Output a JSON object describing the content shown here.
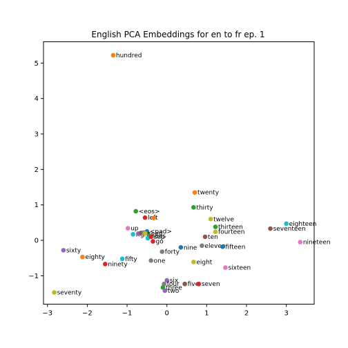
{
  "chart_data": {
    "type": "scatter",
    "title": "English PCA Embeddings for en to fr ep. 1",
    "xlabel": "",
    "ylabel": "",
    "xlim": [
      -3.1,
      3.7
    ],
    "ylim": [
      -1.8,
      5.6
    ],
    "xticks": [
      -3,
      -2,
      -1,
      0,
      1,
      2,
      3
    ],
    "yticks": [
      -1,
      0,
      1,
      2,
      3,
      4,
      5
    ],
    "grid": false,
    "points": [
      {
        "label": "hundred",
        "x": -1.35,
        "y": 5.22,
        "color": "#ff7f0e"
      },
      {
        "label": "twenty",
        "x": 0.7,
        "y": 1.35,
        "color": "#ff7f0e"
      },
      {
        "label": "thirty",
        "x": 0.67,
        "y": 0.93,
        "color": "#2ca02c"
      },
      {
        "label": "<eos>",
        "x": -0.78,
        "y": 0.82,
        "color": "#2ca02c"
      },
      {
        "label": "left",
        "x": -0.55,
        "y": 0.64,
        "color": "#d62728"
      },
      {
        "label": "",
        "x": -0.33,
        "y": 0.63,
        "color": "#ff7f0e"
      },
      {
        "label": "twelve",
        "x": 1.1,
        "y": 0.6,
        "color": "#bcbd22"
      },
      {
        "label": "thirteen",
        "x": 1.22,
        "y": 0.38,
        "color": "#2ca02c"
      },
      {
        "label": "fourteen",
        "x": 1.22,
        "y": 0.24,
        "color": "#bcbd22"
      },
      {
        "label": "eighteen",
        "x": 3.0,
        "y": 0.47,
        "color": "#17becf"
      },
      {
        "label": "seventeen",
        "x": 2.6,
        "y": 0.33,
        "color": "#8c564b"
      },
      {
        "label": "up",
        "x": -0.98,
        "y": 0.34,
        "color": "#e377c2"
      },
      {
        "label": "ten",
        "x": 0.96,
        "y": 0.1,
        "color": "#8c564b"
      },
      {
        "label": "nineteen",
        "x": 3.35,
        "y": -0.05,
        "color": "#e377c2"
      },
      {
        "label": "eleven",
        "x": 0.88,
        "y": -0.15,
        "color": "#7f7f7f"
      },
      {
        "label": "fifteen",
        "x": 1.4,
        "y": -0.18,
        "color": "#1f77b4"
      },
      {
        "label": "nine",
        "x": 0.35,
        "y": -0.2,
        "color": "#1f77b4"
      },
      {
        "label": "right",
        "x": -0.85,
        "y": 0.17,
        "color": "#17becf"
      },
      {
        "label": "",
        "x": -0.72,
        "y": 0.19,
        "color": "#9467bd"
      },
      {
        "label": "",
        "x": -0.65,
        "y": 0.21,
        "color": "#8c564b"
      },
      {
        "label": "",
        "x": -0.58,
        "y": 0.22,
        "color": "#7f7f7f"
      },
      {
        "label": "<pad>",
        "x": -0.5,
        "y": 0.25,
        "color": "#1f77b4"
      },
      {
        "label": "seed",
        "x": -0.55,
        "y": 0.2,
        "color": "#bcbd22"
      },
      {
        "label": "seas",
        "x": -0.45,
        "y": 0.13,
        "color": "#2ca02c"
      },
      {
        "label": "",
        "x": -0.48,
        "y": 0.06,
        "color": "#17becf"
      },
      {
        "label": "sep",
        "x": -0.4,
        "y": 0.1,
        "color": "#d62728"
      },
      {
        "label": "go",
        "x": -0.35,
        "y": -0.03,
        "color": "#d62728"
      },
      {
        "label": "sixty",
        "x": -2.6,
        "y": -0.28,
        "color": "#9467bd"
      },
      {
        "label": "forty",
        "x": -0.12,
        "y": -0.32,
        "color": "#7f7f7f"
      },
      {
        "label": "eighty",
        "x": -2.12,
        "y": -0.47,
        "color": "#ff7f0e"
      },
      {
        "label": "fifty",
        "x": -1.12,
        "y": -0.52,
        "color": "#17becf"
      },
      {
        "label": "one",
        "x": -0.4,
        "y": -0.57,
        "color": "#7f7f7f"
      },
      {
        "label": "eight",
        "x": 0.67,
        "y": -0.61,
        "color": "#bcbd22"
      },
      {
        "label": "ninety",
        "x": -1.55,
        "y": -0.67,
        "color": "#d62728"
      },
      {
        "label": "sixteen",
        "x": 1.47,
        "y": -0.77,
        "color": "#e377c2"
      },
      {
        "label": "six",
        "x": 0.0,
        "y": -1.13,
        "color": "#9467bd"
      },
      {
        "label": "four",
        "x": -0.07,
        "y": -1.23,
        "color": "#7f7f7f"
      },
      {
        "label": "five",
        "x": 0.45,
        "y": -1.23,
        "color": "#8c564b"
      },
      {
        "label": "seven",
        "x": 0.8,
        "y": -1.23,
        "color": "#d62728"
      },
      {
        "label": "three",
        "x": -0.1,
        "y": -1.33,
        "color": "#2ca02c"
      },
      {
        "label": "two",
        "x": -0.05,
        "y": -1.42,
        "color": "#9467bd"
      },
      {
        "label": "seventy",
        "x": -2.83,
        "y": -1.47,
        "color": "#bcbd22"
      }
    ]
  }
}
